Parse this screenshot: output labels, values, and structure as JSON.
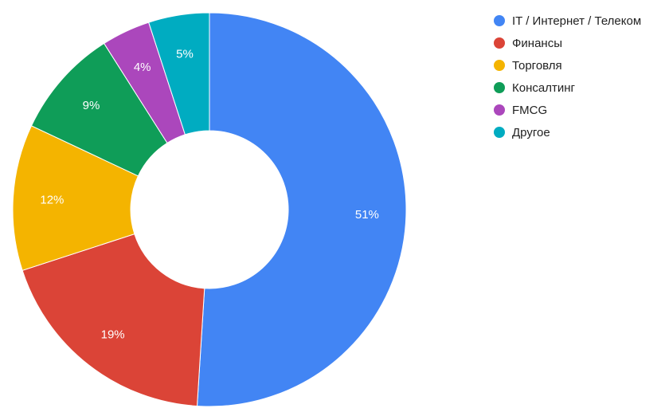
{
  "chart_data": {
    "type": "pie",
    "donut": true,
    "start_angle_deg": 0,
    "direction": "clockwise",
    "legend_position": "right",
    "slices": [
      {
        "label": "IT / Интернет / Телеком",
        "value": 51,
        "display": "51%",
        "color": "#4285f4"
      },
      {
        "label": "Финансы",
        "value": 19,
        "display": "19%",
        "color": "#db4437"
      },
      {
        "label": "Торговля",
        "value": 12,
        "display": "12%",
        "color": "#f4b400"
      },
      {
        "label": "Консалтинг",
        "value": 9,
        "display": "9%",
        "color": "#0f9d58"
      },
      {
        "label": "FMCG",
        "value": 4,
        "display": "4%",
        "color": "#ab47bc"
      },
      {
        "label": "Другое",
        "value": 5,
        "display": "5%",
        "color": "#00acc1"
      }
    ]
  }
}
